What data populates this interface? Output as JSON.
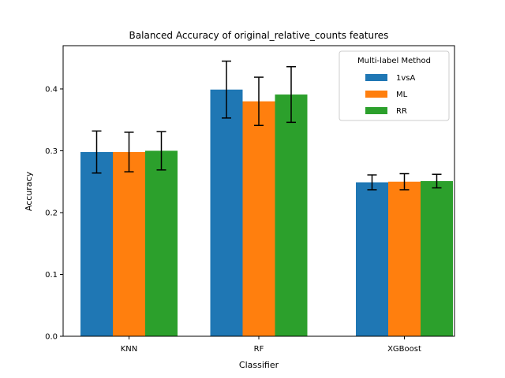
{
  "chart_data": {
    "type": "bar",
    "title": "Balanced Accuracy of original_relative_counts features",
    "xlabel": "Classifier",
    "ylabel": "Accuracy",
    "categories": [
      "KNN",
      "RF",
      "XGBoost"
    ],
    "ylim": [
      0,
      0.47
    ],
    "yticks": [
      0.0,
      0.1,
      0.2,
      0.3,
      0.4
    ],
    "ytick_labels": [
      "0.0",
      "0.1",
      "0.2",
      "0.3",
      "0.4"
    ],
    "legend": {
      "title": "Multi-label Method",
      "placement": "top-right"
    },
    "series": [
      {
        "name": "1vsA",
        "color": "#1f77b4",
        "values": [
          0.298,
          0.399,
          0.249
        ],
        "errors": [
          0.034,
          0.046,
          0.012
        ]
      },
      {
        "name": "ML",
        "color": "#ff7f0e",
        "values": [
          0.298,
          0.38,
          0.25
        ],
        "errors": [
          0.032,
          0.039,
          0.013
        ]
      },
      {
        "name": "RR",
        "color": "#2ca02c",
        "values": [
          0.3,
          0.391,
          0.251
        ],
        "errors": [
          0.031,
          0.045,
          0.011
        ]
      }
    ],
    "grid": false
  }
}
